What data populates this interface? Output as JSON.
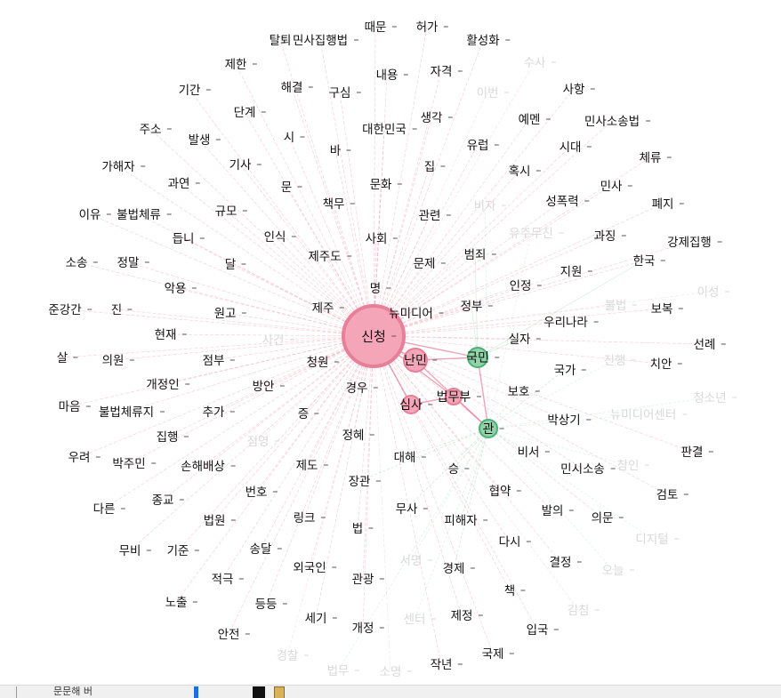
{
  "colors": {
    "pink_node": "#f4a6b8",
    "pink_stroke": "#e67f98",
    "green_node": "#8fd4a8",
    "green_stroke": "#4fae77",
    "pink_edge": "#f1a9bb",
    "green_edge": "#a8dbbd",
    "faded_label": "#d9d9d9"
  },
  "nodes": [
    {
      "id": "신청",
      "label": "신청",
      "group": "pink",
      "size": 34,
      "hub": true
    },
    {
      "id": "난민",
      "label": "난민",
      "group": "pink",
      "size": 13,
      "hub": true
    },
    {
      "id": "국민",
      "label": "국민",
      "group": "green",
      "size": 11,
      "hub": true
    },
    {
      "id": "심사",
      "label": "심사",
      "group": "pink",
      "size": 10,
      "hub": true
    },
    {
      "id": "법무부",
      "label": "법무부",
      "group": "pink",
      "size": 9,
      "hub": true
    },
    {
      "id": "관",
      "label": "관",
      "group": "green",
      "size": 10,
      "hub": true
    },
    {
      "id": "때문",
      "label": "때문"
    },
    {
      "id": "허가",
      "label": "허가"
    },
    {
      "id": "탈퇴",
      "label": "탈퇴"
    },
    {
      "id": "민사집행법",
      "label": "민사집행법"
    },
    {
      "id": "활성화",
      "label": "활성화"
    },
    {
      "id": "제한",
      "label": "제한"
    },
    {
      "id": "내용",
      "label": "내용"
    },
    {
      "id": "자격",
      "label": "자격"
    },
    {
      "id": "수사",
      "label": "수사",
      "faded": true
    },
    {
      "id": "기간",
      "label": "기간"
    },
    {
      "id": "해결",
      "label": "해결"
    },
    {
      "id": "구심",
      "label": "구심"
    },
    {
      "id": "이번",
      "label": "이번",
      "faded": true
    },
    {
      "id": "사항",
      "label": "사항"
    },
    {
      "id": "단계",
      "label": "단계"
    },
    {
      "id": "생각",
      "label": "생각"
    },
    {
      "id": "예멘",
      "label": "예멘"
    },
    {
      "id": "민사소송법",
      "label": "민사소송법"
    },
    {
      "id": "주소",
      "label": "주소"
    },
    {
      "id": "시",
      "label": "시"
    },
    {
      "id": "대한민국",
      "label": "대한민국"
    },
    {
      "id": "발생",
      "label": "발생"
    },
    {
      "id": "바",
      "label": "바"
    },
    {
      "id": "유럽",
      "label": "유럽"
    },
    {
      "id": "시대",
      "label": "시대"
    },
    {
      "id": "체류",
      "label": "체류"
    },
    {
      "id": "가해자",
      "label": "가해자"
    },
    {
      "id": "기사",
      "label": "기사"
    },
    {
      "id": "집",
      "label": "집"
    },
    {
      "id": "혹시",
      "label": "혹시"
    },
    {
      "id": "과연",
      "label": "과연"
    },
    {
      "id": "문",
      "label": "문"
    },
    {
      "id": "문화",
      "label": "문화"
    },
    {
      "id": "민사",
      "label": "민사"
    },
    {
      "id": "이유",
      "label": "이유"
    },
    {
      "id": "불법체류",
      "label": "불법체류"
    },
    {
      "id": "규모",
      "label": "규모"
    },
    {
      "id": "책무",
      "label": "책무"
    },
    {
      "id": "비자",
      "label": "비자",
      "faded": true
    },
    {
      "id": "성폭력",
      "label": "성폭력"
    },
    {
      "id": "폐지",
      "label": "폐지"
    },
    {
      "id": "관련",
      "label": "관련"
    },
    {
      "id": "듭니",
      "label": "듭니"
    },
    {
      "id": "인식",
      "label": "인식"
    },
    {
      "id": "사회",
      "label": "사회"
    },
    {
      "id": "유주무진",
      "label": "유주무진",
      "faded": true
    },
    {
      "id": "과징",
      "label": "과징"
    },
    {
      "id": "강제집행",
      "label": "강제집행"
    },
    {
      "id": "소송",
      "label": "소송"
    },
    {
      "id": "정말",
      "label": "정말"
    },
    {
      "id": "달",
      "label": "달"
    },
    {
      "id": "제주도",
      "label": "제주도"
    },
    {
      "id": "문제",
      "label": "문제"
    },
    {
      "id": "범죄",
      "label": "범죄"
    },
    {
      "id": "한국",
      "label": "한국"
    },
    {
      "id": "지원",
      "label": "지원"
    },
    {
      "id": "악용",
      "label": "악용"
    },
    {
      "id": "인정",
      "label": "인정"
    },
    {
      "id": "명",
      "label": "명"
    },
    {
      "id": "이성",
      "label": "이성",
      "faded": true
    },
    {
      "id": "불법",
      "label": "불법",
      "faded": true
    },
    {
      "id": "준강간",
      "label": "준강간"
    },
    {
      "id": "진",
      "label": "진"
    },
    {
      "id": "원고",
      "label": "원고"
    },
    {
      "id": "제주",
      "label": "제주"
    },
    {
      "id": "뉴미디어",
      "label": "뉴미디어"
    },
    {
      "id": "정부",
      "label": "정부"
    },
    {
      "id": "보복",
      "label": "보복"
    },
    {
      "id": "우리나라",
      "label": "우리나라"
    },
    {
      "id": "현재",
      "label": "현재"
    },
    {
      "id": "사건",
      "label": "사건",
      "faded": true
    },
    {
      "id": "실자",
      "label": "실자"
    },
    {
      "id": "선례",
      "label": "선례"
    },
    {
      "id": "살",
      "label": "살"
    },
    {
      "id": "의원",
      "label": "의원"
    },
    {
      "id": "점부",
      "label": "점부"
    },
    {
      "id": "청원",
      "label": "청원"
    },
    {
      "id": "국가",
      "label": "국가"
    },
    {
      "id": "진행",
      "label": "진행",
      "faded": true
    },
    {
      "id": "치안",
      "label": "치안"
    },
    {
      "id": "개정인",
      "label": "개정인"
    },
    {
      "id": "방안",
      "label": "방안"
    },
    {
      "id": "경우",
      "label": "경우"
    },
    {
      "id": "보호",
      "label": "보호"
    },
    {
      "id": "청소년",
      "label": "청소년",
      "faded": true
    },
    {
      "id": "마음",
      "label": "마음"
    },
    {
      "id": "불법체류지",
      "label": "불법체류지"
    },
    {
      "id": "추가",
      "label": "추가"
    },
    {
      "id": "증",
      "label": "증"
    },
    {
      "id": "박상기",
      "label": "박상기"
    },
    {
      "id": "뉴미디어센터",
      "label": "뉴미디어센터",
      "faded": true
    },
    {
      "id": "집행",
      "label": "집행"
    },
    {
      "id": "점영",
      "label": "점영",
      "faded": true
    },
    {
      "id": "정혜",
      "label": "정혜"
    },
    {
      "id": "비서",
      "label": "비서"
    },
    {
      "id": "판결",
      "label": "판결"
    },
    {
      "id": "우려",
      "label": "우려"
    },
    {
      "id": "박주민",
      "label": "박주민"
    },
    {
      "id": "손해배상",
      "label": "손해배상"
    },
    {
      "id": "제도",
      "label": "제도"
    },
    {
      "id": "대해",
      "label": "대해"
    },
    {
      "id": "승",
      "label": "승"
    },
    {
      "id": "민시소송",
      "label": "민시소송"
    },
    {
      "id": "참인",
      "label": "참인",
      "faded": true
    },
    {
      "id": "번호",
      "label": "번호"
    },
    {
      "id": "장관",
      "label": "장관"
    },
    {
      "id": "협약",
      "label": "협약"
    },
    {
      "id": "검토",
      "label": "검토"
    },
    {
      "id": "종교",
      "label": "종교"
    },
    {
      "id": "다른",
      "label": "다른"
    },
    {
      "id": "무사",
      "label": "무사"
    },
    {
      "id": "발의",
      "label": "발의"
    },
    {
      "id": "의문",
      "label": "의문"
    },
    {
      "id": "법원",
      "label": "법원"
    },
    {
      "id": "링크",
      "label": "링크"
    },
    {
      "id": "피해자",
      "label": "피해자"
    },
    {
      "id": "무비",
      "label": "무비"
    },
    {
      "id": "기준",
      "label": "기준"
    },
    {
      "id": "법",
      "label": "법"
    },
    {
      "id": "디지털",
      "label": "디지털",
      "faded": true
    },
    {
      "id": "송달",
      "label": "송달"
    },
    {
      "id": "다시",
      "label": "다시"
    },
    {
      "id": "서명",
      "label": "서명",
      "faded": true
    },
    {
      "id": "결정",
      "label": "결정"
    },
    {
      "id": "오늘",
      "label": "오늘",
      "faded": true
    },
    {
      "id": "적극",
      "label": "적극"
    },
    {
      "id": "외국인",
      "label": "외국인"
    },
    {
      "id": "관광",
      "label": "관광"
    },
    {
      "id": "경제",
      "label": "경제"
    },
    {
      "id": "책",
      "label": "책"
    },
    {
      "id": "노출",
      "label": "노출"
    },
    {
      "id": "등등",
      "label": "등등"
    },
    {
      "id": "김침",
      "label": "김침",
      "faded": true
    },
    {
      "id": "세기",
      "label": "세기"
    },
    {
      "id": "개정",
      "label": "개정"
    },
    {
      "id": "센터",
      "label": "센터",
      "faded": true
    },
    {
      "id": "제정",
      "label": "제정"
    },
    {
      "id": "입국",
      "label": "입국"
    },
    {
      "id": "안전",
      "label": "안전"
    },
    {
      "id": "경찰",
      "label": "경찰",
      "faded": true
    },
    {
      "id": "국제",
      "label": "국제"
    },
    {
      "id": "법무",
      "label": "법무",
      "faded": true
    },
    {
      "id": "소명",
      "label": "소명",
      "faded": true
    },
    {
      "id": "작년",
      "label": "작년"
    }
  ],
  "hub_links": [
    {
      "source": "신청",
      "target": "난민"
    },
    {
      "source": "신청",
      "target": "심사"
    },
    {
      "source": "신청",
      "target": "법무부"
    },
    {
      "source": "신청",
      "target": "국민"
    },
    {
      "source": "난민",
      "target": "국민"
    },
    {
      "source": "국민",
      "target": "관"
    },
    {
      "source": "심사",
      "target": "법무부"
    },
    {
      "source": "법무부",
      "target": "관"
    },
    {
      "source": "난민",
      "target": "관"
    }
  ],
  "statusbar": {
    "text": "문문해  버"
  }
}
